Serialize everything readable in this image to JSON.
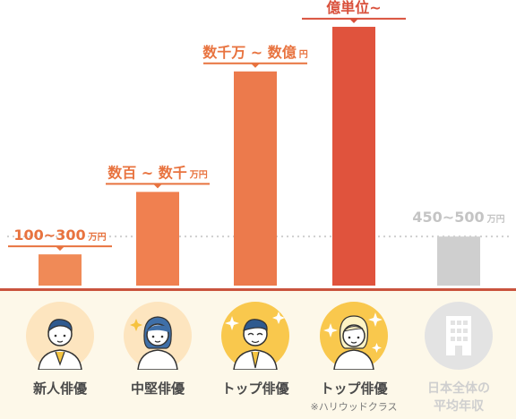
{
  "chart_data": {
    "type": "bar",
    "title": "",
    "categories": [
      "新人俳優",
      "中堅俳優",
      "トップ俳優",
      "トップ俳優",
      "日本全体の平均年収"
    ],
    "category_lines": [
      [
        "新人俳優"
      ],
      [
        "中堅俳優"
      ],
      [
        "トップ俳優"
      ],
      [
        "トップ俳優"
      ],
      [
        "日本全体の",
        "平均年収"
      ]
    ],
    "category_sublabels": [
      "",
      "",
      "",
      "※ハリウッドクラス",
      ""
    ],
    "values": [
      0.7,
      2.1,
      4.8,
      5.8,
      1.1
    ],
    "value_labels": [
      {
        "main": "100~300",
        "unit": "万円"
      },
      {
        "main": "数百 ~ 数千",
        "unit": "万円"
      },
      {
        "main": "数千万 ~ 数億",
        "unit": "円"
      },
      {
        "main": "億単位~",
        "unit": ""
      },
      {
        "main": "450~500",
        "unit": "万円"
      }
    ],
    "reference_line": {
      "value": 1.1,
      "style": "dotted"
    },
    "bar_colors": [
      "#f08a57",
      "#f08050",
      "#ec7a4c",
      "#e0533d",
      "#cfcfcf"
    ],
    "label_colors": [
      "#e8733f",
      "#e8733f",
      "#e8733f",
      "#d9503b",
      "#c4c4c4"
    ],
    "ylim": [
      0,
      6.2
    ],
    "xlabel": "",
    "ylabel": "",
    "grid": false,
    "legend": "none"
  },
  "icons": [
    "businessman-icon",
    "woman-icon",
    "sparkle-businessman-icon",
    "sparkle-star-icon",
    "building-icon"
  ],
  "colors": {
    "axis": "#c9533d",
    "bottom_bg": "#fdf8e9",
    "avatar_bg": "#fde5bf",
    "avatar_bg_gold": "#f9c84d",
    "muted": "#e3e3e3"
  }
}
